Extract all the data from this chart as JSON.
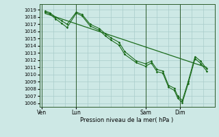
{
  "background_color": "#cde8e5",
  "grid_color": "#a8ccca",
  "line_color": "#1a6b1a",
  "xlabel": "Pression niveau de la mer( hPa )",
  "xtick_labels": [
    "Ven",
    "Lun",
    "Sam",
    "Dim"
  ],
  "xtick_positions": [
    0,
    3,
    9,
    12
  ],
  "vline_positions": [
    0,
    3,
    9,
    12
  ],
  "ylim": [
    1005.5,
    1019.8
  ],
  "yticks": [
    1006,
    1007,
    1008,
    1009,
    1010,
    1011,
    1012,
    1013,
    1014,
    1015,
    1016,
    1017,
    1018,
    1019
  ],
  "xlim": [
    -0.2,
    15.0
  ],
  "series1_x": [
    0.3,
    0.7,
    1.2,
    1.7,
    2.2,
    3.0,
    3.5,
    4.2,
    5.0,
    5.5,
    6.0,
    6.7,
    7.2,
    8.2,
    9.0,
    9.5,
    10.0,
    10.5,
    11.0,
    11.5,
    11.8,
    12.2,
    12.7,
    13.3,
    13.8,
    14.3
  ],
  "series1_y": [
    1018.85,
    1018.6,
    1018.0,
    1017.5,
    1017.0,
    1018.7,
    1018.35,
    1017.0,
    1016.4,
    1015.7,
    1015.1,
    1014.5,
    1013.2,
    1011.9,
    1011.5,
    1011.85,
    1010.7,
    1010.5,
    1008.5,
    1008.1,
    1007.0,
    1006.4,
    1009.0,
    1012.5,
    1011.85,
    1010.8
  ],
  "series2_x": [
    0.3,
    0.7,
    1.2,
    1.7,
    2.2,
    3.0,
    3.5,
    4.2,
    5.0,
    5.5,
    6.0,
    6.7,
    7.2,
    8.2,
    9.0,
    9.5,
    10.0,
    10.5,
    11.0,
    11.5,
    11.8,
    12.2,
    12.7,
    13.3,
    13.8,
    14.3
  ],
  "series2_y": [
    1018.7,
    1018.45,
    1017.75,
    1017.15,
    1016.55,
    1018.55,
    1018.15,
    1016.75,
    1016.15,
    1015.4,
    1014.8,
    1014.1,
    1012.8,
    1011.65,
    1011.15,
    1011.6,
    1010.4,
    1010.2,
    1008.25,
    1007.8,
    1006.7,
    1006.1,
    1008.7,
    1012.2,
    1011.55,
    1010.5
  ],
  "trend_x": [
    0.3,
    14.3
  ],
  "trend_y": [
    1018.5,
    1011.0
  ]
}
